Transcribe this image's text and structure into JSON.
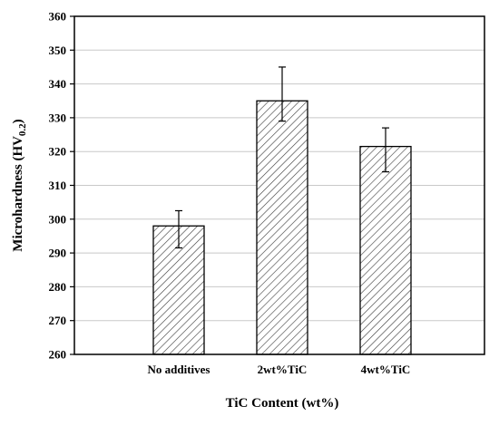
{
  "chart_data": {
    "type": "bar",
    "categories": [
      "No additives",
      "2wt%TiC",
      "4wt%TiC"
    ],
    "values": [
      298,
      335,
      321.5
    ],
    "errors_low": [
      291.5,
      329,
      314
    ],
    "errors_high": [
      302.5,
      345,
      327
    ],
    "xlabel": "TiC Content (wt%)",
    "ylabel_main": "Microhardness (HV",
    "ylabel_sub": "0.2",
    "ylabel_close": ")",
    "ylim": [
      260,
      360
    ],
    "yticks": [
      260,
      270,
      280,
      290,
      300,
      310,
      320,
      330,
      340,
      350,
      360
    ],
    "grid": true,
    "bar_fill": "hatched",
    "bar_color": "#ffffff",
    "hatch_color": "#3a3a3a",
    "grid_color": "#c8c8c8"
  }
}
